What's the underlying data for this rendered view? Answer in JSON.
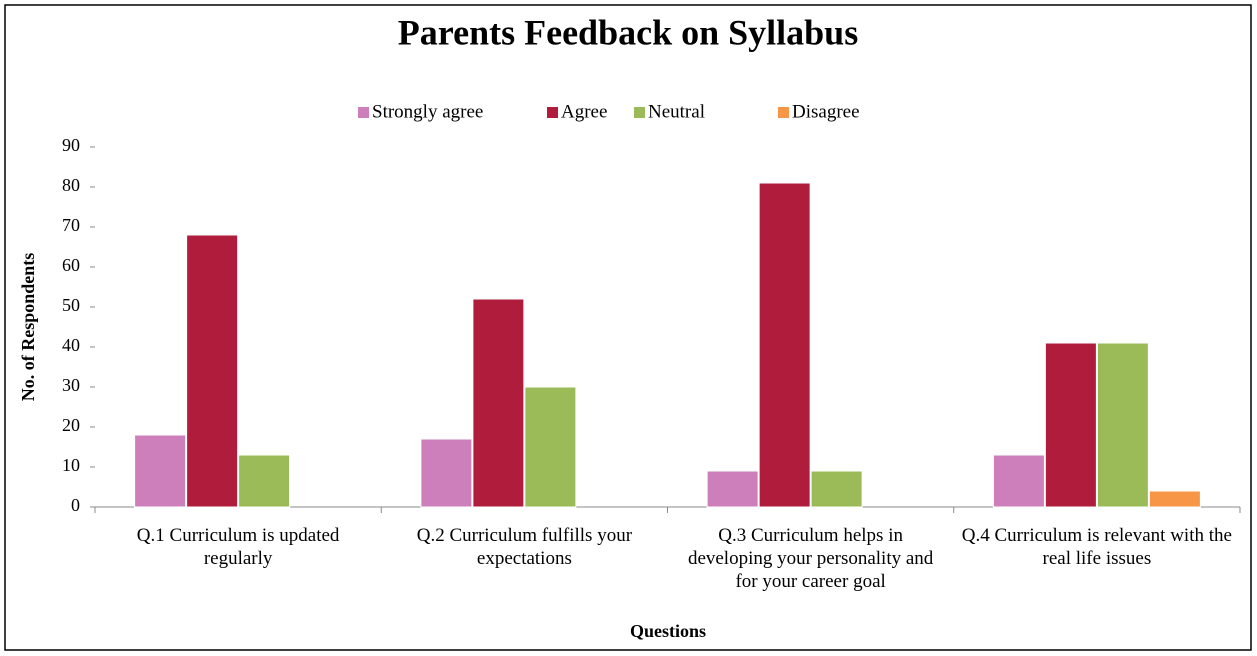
{
  "chart_data": {
    "type": "bar",
    "title": "Parents Feedback on Syllabus",
    "x_label": "Questions",
    "y_label": "No. of Respondents",
    "categories": [
      "Q.1 Curriculum is updated regularly",
      "Q.2 Curriculum fulfills your expectations",
      "Q.3 Curriculum helps in developing your personality and for your career goal",
      "Q.4 Curriculum is relevant with the real life issues"
    ],
    "series": [
      {
        "name": "Strongly agree",
        "color": "#cc7fba",
        "values": [
          18,
          17,
          9,
          13
        ]
      },
      {
        "name": "Agree",
        "color": "#b01c3c",
        "values": [
          68,
          52,
          81,
          41
        ]
      },
      {
        "name": "Neutral",
        "color": "#9bbb59",
        "values": [
          13,
          30,
          9,
          41
        ]
      },
      {
        "name": "Disagree",
        "color": "#f79646",
        "values": [
          0,
          0,
          0,
          4
        ]
      }
    ],
    "ylim": [
      0,
      90
    ],
    "yticks": [
      0,
      10,
      20,
      30,
      40,
      50,
      60,
      70,
      80,
      90
    ],
    "grid": false,
    "legend": "top"
  }
}
